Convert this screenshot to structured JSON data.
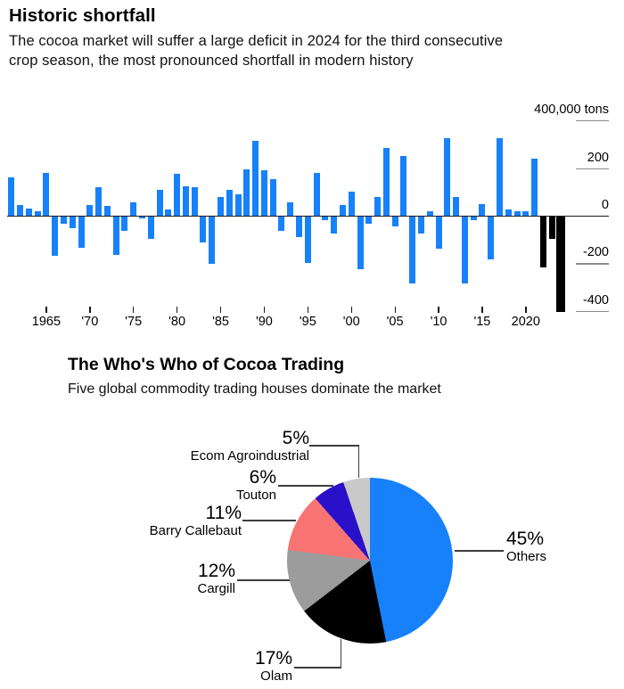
{
  "header": {
    "title": "Historic shortfall",
    "subtitle_line1": "The cocoa market will suffer a large deficit in 2024 for the third consecutive",
    "subtitle_line2": "crop season, the most pronounced shortfall in modern history"
  },
  "pie_header": {
    "title": "The Who's Who of Cocoa Trading",
    "subtitle": "Five global commodity trading houses dominate the market"
  },
  "bar_chart": {
    "y_axis": [
      {
        "label": "400,000 tons",
        "value": 400
      },
      {
        "label": "200",
        "value": 200
      },
      {
        "label": "0",
        "value": 0
      },
      {
        "label": "-200",
        "value": -200
      },
      {
        "label": "-400",
        "value": -400
      }
    ],
    "x_ticks": [
      {
        "label": "1965",
        "year": 1965
      },
      {
        "label": "'70",
        "year": 1970
      },
      {
        "label": "'75",
        "year": 1975
      },
      {
        "label": "'80",
        "year": 1980
      },
      {
        "label": "'85",
        "year": 1985
      },
      {
        "label": "'90",
        "year": 1990
      },
      {
        "label": "'95",
        "year": 1995
      },
      {
        "label": "'00",
        "year": 2000
      },
      {
        "label": "'05",
        "year": 2005
      },
      {
        "label": "'10",
        "year": 2010
      },
      {
        "label": "'15",
        "year": 2015
      },
      {
        "label": "2020",
        "year": 2020
      }
    ],
    "colors": {
      "surplus_deficit_bar": "#1781fa",
      "highlight_bar": "#000000"
    }
  },
  "chart_data": [
    {
      "type": "bar",
      "title": "Historic shortfall",
      "ylabel": "400,000 tons",
      "ylim": [
        -450,
        400
      ],
      "grid": "right-segments",
      "x": [
        1961,
        1962,
        1963,
        1964,
        1965,
        1966,
        1967,
        1968,
        1969,
        1970,
        1971,
        1972,
        1973,
        1974,
        1975,
        1976,
        1977,
        1978,
        1979,
        1980,
        1981,
        1982,
        1983,
        1984,
        1985,
        1986,
        1987,
        1988,
        1989,
        1990,
        1991,
        1992,
        1993,
        1994,
        1995,
        1996,
        1997,
        1998,
        1999,
        2000,
        2001,
        2002,
        2003,
        2004,
        2005,
        2006,
        2007,
        2008,
        2009,
        2010,
        2011,
        2012,
        2013,
        2014,
        2015,
        2016,
        2017,
        2018,
        2019,
        2020,
        2021,
        2022,
        2023,
        2024
      ],
      "values": [
        160,
        45,
        30,
        20,
        180,
        -165,
        -30,
        -50,
        -130,
        45,
        120,
        40,
        -160,
        -60,
        55,
        -5,
        -95,
        110,
        25,
        175,
        125,
        120,
        -110,
        -200,
        80,
        110,
        90,
        195,
        315,
        190,
        155,
        -60,
        55,
        -85,
        -195,
        180,
        -15,
        -70,
        45,
        100,
        -220,
        -30,
        80,
        285,
        -40,
        250,
        -280,
        -70,
        20,
        -135,
        325,
        80,
        -280,
        -15,
        50,
        -180,
        325,
        25,
        20,
        20,
        240,
        -215,
        -95,
        -400
      ],
      "black_years": [
        2022,
        2023,
        2024
      ]
    },
    {
      "type": "pie",
      "title": "The Who's Who of Cocoa Trading",
      "legend_position": "callout-labels",
      "slices": [
        {
          "label": "Others",
          "value": 45,
          "pct_label": "45%",
          "color": "#1781fa"
        },
        {
          "label": "Olam",
          "value": 17,
          "pct_label": "17%",
          "color": "#000000"
        },
        {
          "label": "Cargill",
          "value": 12,
          "pct_label": "12%",
          "color": "#9c9c9c"
        },
        {
          "label": "Barry Callebaut",
          "value": 11,
          "pct_label": "11%",
          "color": "#f87474"
        },
        {
          "label": "Touton",
          "value": 6,
          "pct_label": "6%",
          "color": "#2b10c9"
        },
        {
          "label": "Ecom Agroindustrial",
          "value": 5,
          "pct_label": "5%",
          "color": "#c9c9c9"
        }
      ]
    }
  ]
}
